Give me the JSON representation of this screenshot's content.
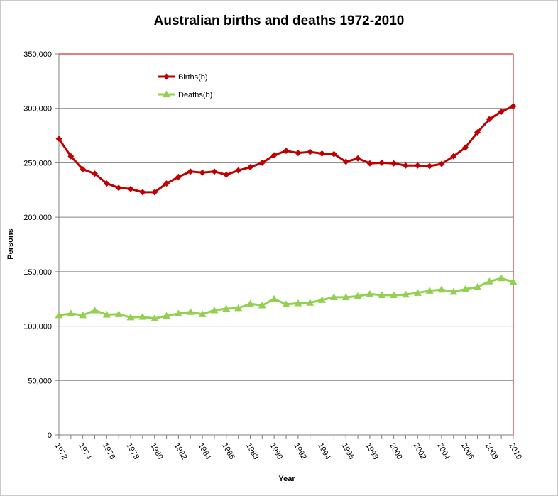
{
  "chart_data": {
    "type": "line",
    "title": "Australian births and deaths 1972-2010",
    "xlabel": "Year",
    "ylabel": "Persons",
    "ylim": [
      0,
      350000
    ],
    "yticks": [
      "0",
      "50,000",
      "100,000",
      "150,000",
      "200,000",
      "250,000",
      "300,000",
      "350,000"
    ],
    "ytick_values": [
      0,
      50000,
      100000,
      150000,
      200000,
      250000,
      300000,
      350000
    ],
    "x": [
      1972,
      1973,
      1974,
      1975,
      1976,
      1977,
      1978,
      1979,
      1980,
      1981,
      1982,
      1983,
      1984,
      1985,
      1986,
      1987,
      1988,
      1989,
      1990,
      1991,
      1992,
      1993,
      1994,
      1995,
      1996,
      1997,
      1998,
      1999,
      2000,
      2001,
      2002,
      2003,
      2004,
      2005,
      2006,
      2007,
      2008,
      2009,
      2010
    ],
    "xticks": [
      "1972",
      "1974",
      "1976",
      "1978",
      "1980",
      "1982",
      "1984",
      "1986",
      "1988",
      "1990",
      "1992",
      "1994",
      "1996",
      "1998",
      "2000",
      "2002",
      "2004",
      "2006",
      "2008",
      "2010"
    ],
    "grid": true,
    "legend": "top-left",
    "series": [
      {
        "name": "Births(b)",
        "color": "#c00000",
        "marker": "diamond",
        "values": [
          272000,
          256000,
          244000,
          240000,
          231000,
          227000,
          226000,
          223000,
          223000,
          231000,
          237000,
          242000,
          241000,
          242000,
          239000,
          243000,
          246000,
          250000,
          257000,
          261000,
          259000,
          260000,
          258500,
          258000,
          251000,
          254000,
          249500,
          250000,
          249500,
          247500,
          247500,
          247000,
          249000,
          256000,
          264000,
          278000,
          290000,
          297000,
          302000
        ]
      },
      {
        "name": "Deaths(b)",
        "color": "#92d050",
        "marker": "triangle",
        "values": [
          110000,
          111500,
          110000,
          114500,
          110500,
          111000,
          108000,
          108500,
          107000,
          109500,
          111500,
          113000,
          111000,
          114500,
          116000,
          116500,
          120500,
          119000,
          125000,
          120000,
          121000,
          121500,
          124000,
          126500,
          126500,
          127500,
          129500,
          128500,
          128500,
          129000,
          130500,
          132500,
          133500,
          131500,
          134000,
          136000,
          141000,
          144000,
          140500
        ]
      }
    ]
  }
}
